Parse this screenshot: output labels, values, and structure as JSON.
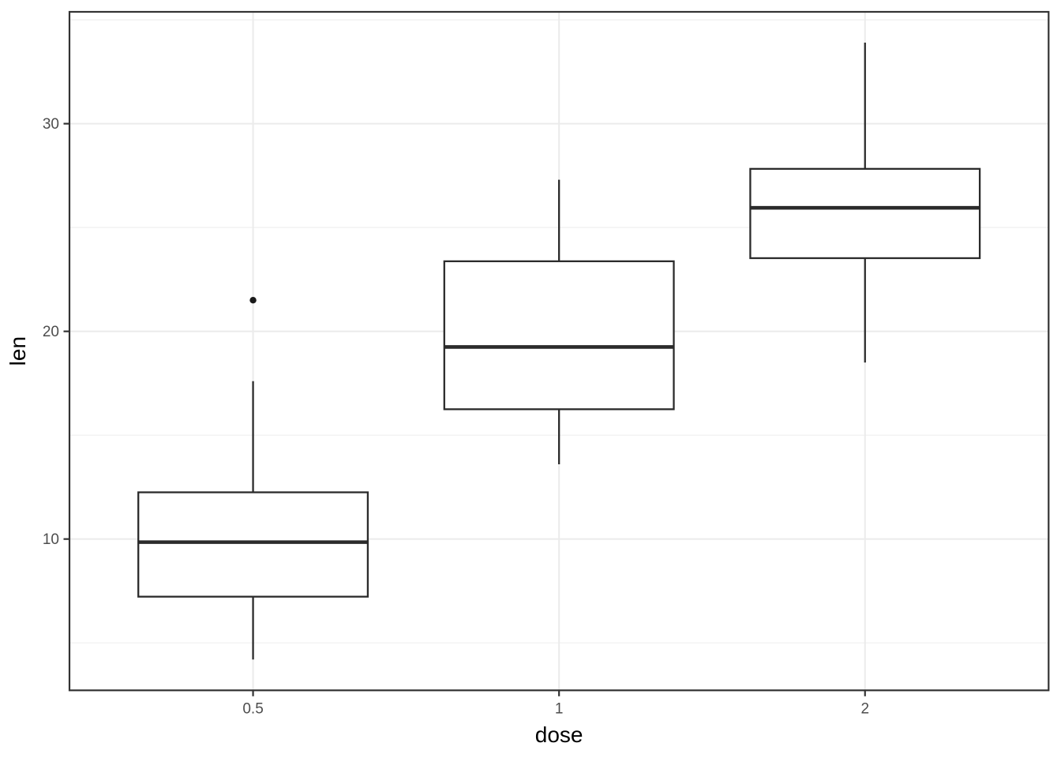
{
  "figure": {
    "background": "#ffffff"
  },
  "chart_data": {
    "type": "boxplot",
    "title": "",
    "xlabel": "dose",
    "ylabel": "len",
    "categories": [
      "0.5",
      "1",
      "2"
    ],
    "series": [
      {
        "category": "0.5",
        "lower_whisker": 4.2,
        "q1": 7.225,
        "median": 9.85,
        "q3": 12.25,
        "upper_whisker": 17.6,
        "outliers": [
          21.5
        ]
      },
      {
        "category": "1",
        "lower_whisker": 13.6,
        "q1": 16.25,
        "median": 19.25,
        "q3": 23.375,
        "upper_whisker": 27.3,
        "outliers": []
      },
      {
        "category": "2",
        "lower_whisker": 18.5,
        "q1": 23.525,
        "median": 25.95,
        "q3": 27.825,
        "upper_whisker": 33.9,
        "outliers": []
      }
    ],
    "y_axis": {
      "label": "len",
      "major_ticks": [
        10,
        20,
        30
      ],
      "minor_ticks": [
        5,
        15,
        25,
        35
      ],
      "range": [
        2.715,
        35.385
      ]
    },
    "x_axis": {
      "label": "dose",
      "ticks": [
        "0.5",
        "1",
        "2"
      ]
    },
    "grid": true,
    "legend": false,
    "style": {
      "panel_background": "#ffffff",
      "panel_border": "#333333",
      "grid_major": "#ebebeb",
      "grid_minor": "#efefef",
      "box_stroke": "#2b2b2b",
      "box_fill": "#ffffff",
      "outlier_fill": "#1a1a1a",
      "tick_color": "#333333",
      "tick_text_color": "#4d4d4d",
      "axis_title_color": "#000000"
    }
  }
}
